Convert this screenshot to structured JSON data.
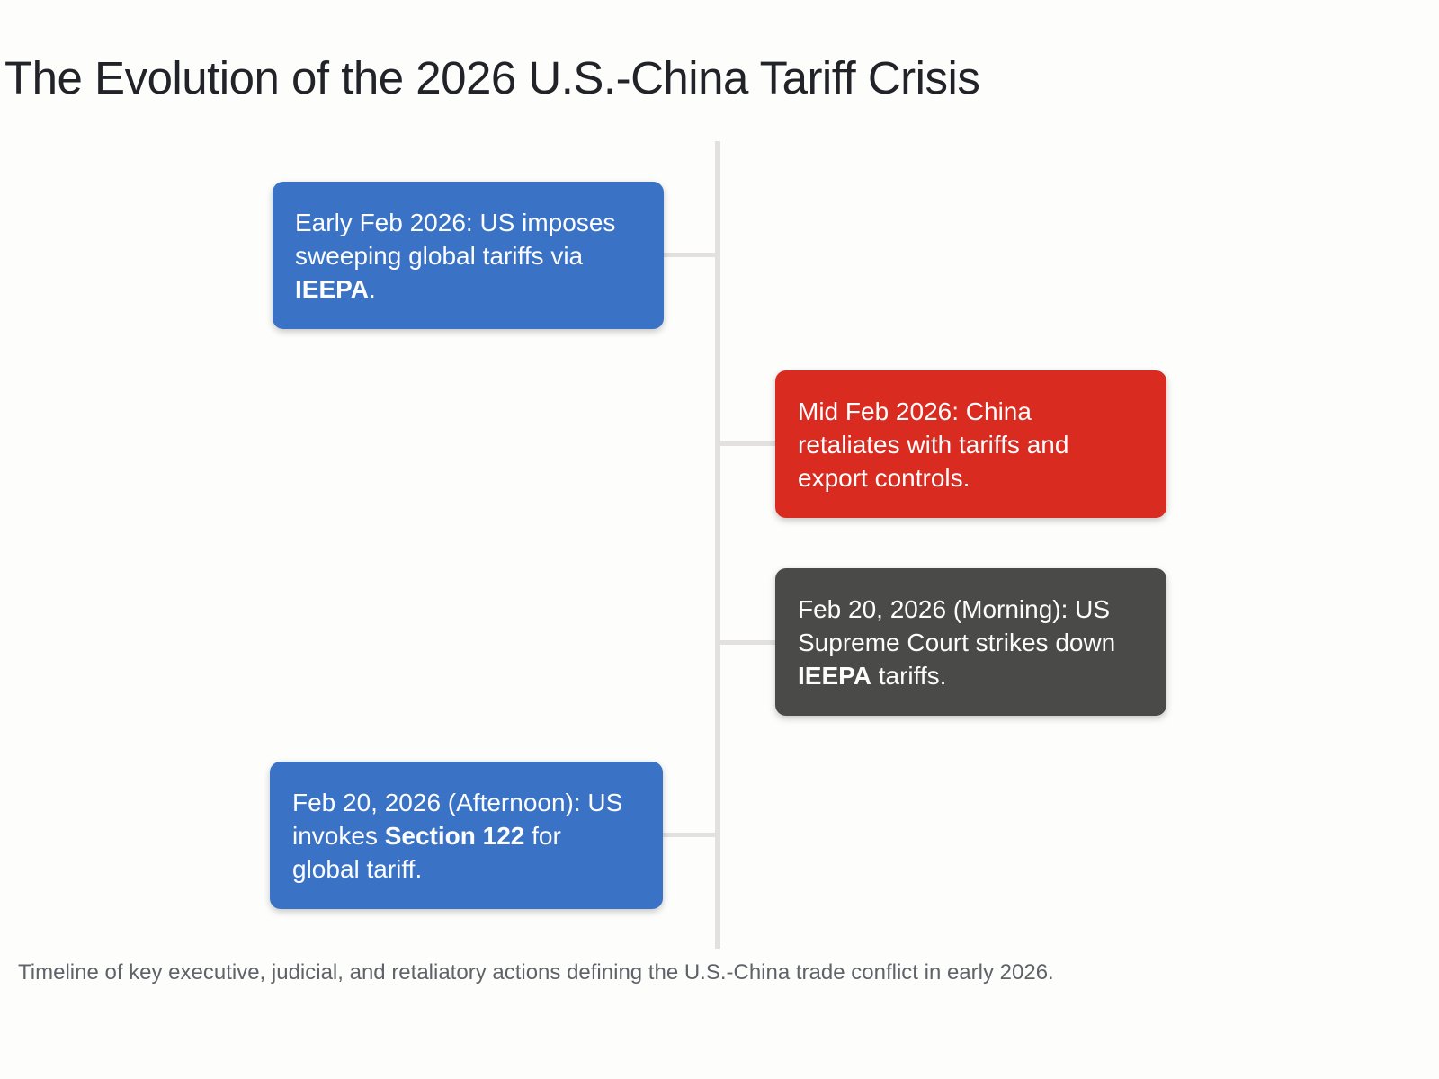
{
  "page": {
    "title": "The Evolution of the 2026 U.S.-China Tariff Crisis",
    "caption": "Timeline of key executive, judicial, and retaliatory actions defining the U.S.-China trade conflict in early 2026."
  },
  "colors": {
    "blue": "#3a73c6",
    "red": "#da2b20",
    "dark": "#4a4a48",
    "line": "#e2e1df"
  },
  "timeline": {
    "events": [
      {
        "side": "left",
        "color": "blue",
        "prefix": "Early Feb 2026: US imposes\nsweeping global tariffs via\n",
        "bold": "IEEPA",
        "suffix": "."
      },
      {
        "side": "right",
        "color": "red",
        "prefix": "Mid Feb 2026: China\nretaliates with tariffs and\nexport controls.",
        "bold": "",
        "suffix": ""
      },
      {
        "side": "right",
        "color": "dark",
        "prefix": "Feb 20, 2026 (Morning): US\nSupreme Court strikes down\n",
        "bold": "IEEPA",
        "suffix": " tariffs."
      },
      {
        "side": "left",
        "color": "blue",
        "prefix": "Feb 20, 2026 (Afternoon): US\ninvokes ",
        "bold": "Section 122",
        "suffix": " for\nglobal tariff."
      }
    ]
  }
}
